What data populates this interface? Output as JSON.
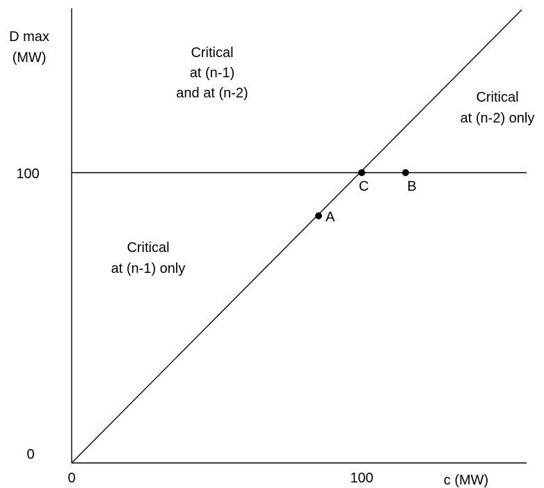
{
  "axes": {
    "y_label": [
      "D max",
      "(MW)"
    ],
    "x_label": "c (MW)",
    "y_ticks": [
      "100",
      "0"
    ],
    "x_ticks": [
      "0",
      "100"
    ]
  },
  "regions": {
    "upper_left": [
      "Critical",
      "at (n-1)",
      "and at (n-2)"
    ],
    "right": [
      "Critical",
      "at (n-2) only"
    ],
    "lower_left": [
      "Critical",
      "at (n-1) only"
    ]
  },
  "points": [
    {
      "label": "A",
      "c": 86,
      "d": 86
    },
    {
      "label": "C",
      "c": 100,
      "d": 100
    },
    {
      "label": "B",
      "c": 116,
      "d": 100
    }
  ]
}
